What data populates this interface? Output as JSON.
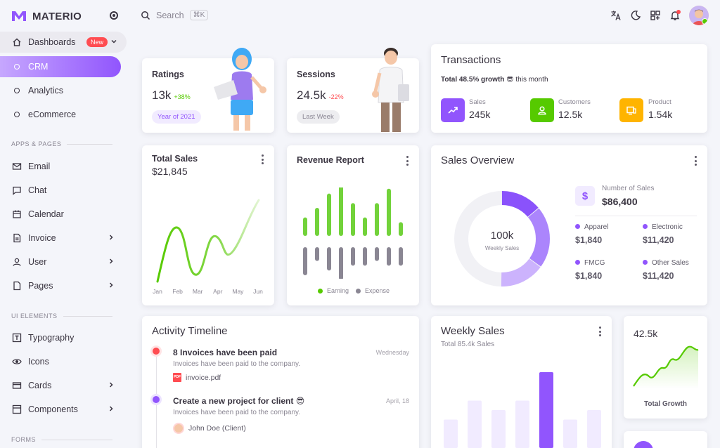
{
  "brand": {
    "name": "MATERIO",
    "color": "#9155fd"
  },
  "sidebar": {
    "dashboards": {
      "label": "Dashboards",
      "badge": "New"
    },
    "sub_items": [
      {
        "label": "CRM",
        "active": true
      },
      {
        "label": "Analytics"
      },
      {
        "label": "eCommerce"
      }
    ],
    "sections": {
      "apps": "APPS & PAGES",
      "ui": "UI ELEMENTS",
      "forms": "FORMS"
    },
    "apps": [
      {
        "label": "Email",
        "icon": "mail-icon"
      },
      {
        "label": "Chat",
        "icon": "chat-icon"
      },
      {
        "label": "Calendar",
        "icon": "calendar-icon"
      },
      {
        "label": "Invoice",
        "icon": "invoice-icon",
        "chevron": true
      },
      {
        "label": "User",
        "icon": "user-icon",
        "chevron": true
      },
      {
        "label": "Pages",
        "icon": "pages-icon",
        "chevron": true
      }
    ],
    "ui": [
      {
        "label": "Typography",
        "icon": "typography-icon"
      },
      {
        "label": "Icons",
        "icon": "eye-icon"
      },
      {
        "label": "Cards",
        "icon": "card-icon",
        "chevron": true
      },
      {
        "label": "Components",
        "icon": "components-icon",
        "chevron": true
      }
    ]
  },
  "topbar": {
    "search_placeholder": "Search",
    "shortcut": "⌘K"
  },
  "ratings": {
    "title": "Ratings",
    "value": "13k",
    "change": "+38%",
    "chip": "Year of 2021"
  },
  "sessions": {
    "title": "Sessions",
    "value": "24.5k",
    "change": "-22%",
    "chip": "Last Week"
  },
  "transactions": {
    "title": "Transactions",
    "growth_bold": "Total 48.5% growth",
    "growth_emoji": "😎",
    "growth_rest": "this month",
    "items": [
      {
        "label": "Sales",
        "value": "245k",
        "color": "#9155fd"
      },
      {
        "label": "Customers",
        "value": "12.5k",
        "color": "#56ca00"
      },
      {
        "label": "Product",
        "value": "1.54k",
        "color": "#ffb400"
      }
    ]
  },
  "total_sales": {
    "title": "Total Sales",
    "value": "$21,845",
    "months": [
      "Jan",
      "Feb",
      "Mar",
      "Apr",
      "May",
      "Jun"
    ]
  },
  "revenue": {
    "title": "Revenue Report",
    "legend": {
      "earning": "Earning",
      "expense": "Expense"
    },
    "earning": [
      3,
      5,
      8,
      10,
      6,
      3,
      6,
      9,
      2
    ],
    "expense": [
      5,
      2,
      4,
      6,
      3,
      3,
      2,
      3,
      3
    ]
  },
  "sales_overview": {
    "title": "Sales Overview",
    "center_value": "100k",
    "center_label": "Weekly Sales",
    "number_label": "Number of Sales",
    "number_value": "$86,400",
    "items": [
      {
        "label": "Apparel",
        "value": "$1,840"
      },
      {
        "label": "Electronic",
        "value": "$11,420"
      },
      {
        "label": "FMCG",
        "value": "$1,840"
      },
      {
        "label": "Other Sales",
        "value": "$11,420"
      }
    ]
  },
  "timeline": {
    "title": "Activity Timeline",
    "items": [
      {
        "title": "8 Invoices have been paid",
        "date": "Wednesday",
        "desc": "Invoices have been paid to the company.",
        "attachment": "invoice.pdf",
        "color": "#ff4c51"
      },
      {
        "title": "Create a new project for client 😎",
        "date": "April, 18",
        "desc": "Invoices have been paid to the company.",
        "attachment": "John Doe (Client)",
        "color": "#9155fd"
      }
    ]
  },
  "weekly_sales": {
    "title": "Weekly Sales",
    "subtitle": "Total 85.4k Sales",
    "bars": [
      3,
      5,
      4,
      5,
      8,
      3,
      4
    ]
  },
  "growth": {
    "value": "42.5k",
    "label": "Total Growth"
  }
}
